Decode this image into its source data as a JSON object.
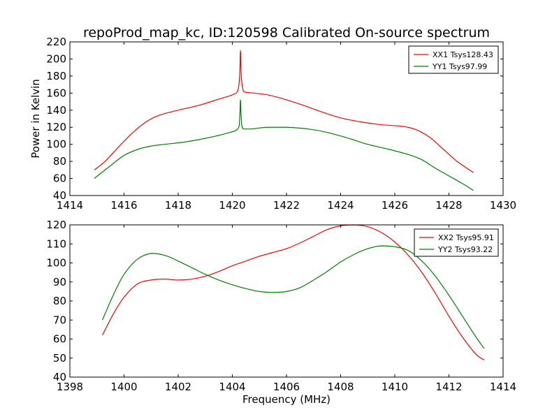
{
  "title": "repoProd_map_kc, ID:120598 Calibrated On-source spectrum",
  "colors": {
    "red": "#ff0000",
    "green": "#008000"
  },
  "chart_data": [
    {
      "type": "line",
      "title": "repoProd_map_kc, ID:120598 Calibrated On-source spectrum",
      "xlabel": "",
      "ylabel": "Power in Kelvin",
      "xlim": [
        1414,
        1430
      ],
      "ylim": [
        40,
        220
      ],
      "xticks": [
        "1414",
        "1416",
        "1418",
        "1420",
        "1422",
        "1424",
        "1426",
        "1428",
        "1430"
      ],
      "yticks": [
        "40",
        "60",
        "80",
        "100",
        "120",
        "140",
        "160",
        "180",
        "200",
        "220"
      ],
      "legend": "top-right",
      "grid": false,
      "series": [
        {
          "name": "XX1 Tsys128.43",
          "color": "#ff0000",
          "x": [
            1414.9,
            1415.3,
            1415.8,
            1416.3,
            1416.8,
            1417.3,
            1418.0,
            1418.8,
            1419.5,
            1420.0,
            1420.2,
            1420.27,
            1420.3,
            1420.33,
            1420.4,
            1420.5,
            1420.8,
            1421.3,
            1421.8,
            1422.5,
            1423.3,
            1424.0,
            1424.8,
            1425.5,
            1426.3,
            1426.8,
            1427.3,
            1427.8,
            1428.3,
            1428.9
          ],
          "y": [
            70,
            80,
            97,
            113,
            126,
            134,
            140,
            146,
            153,
            158,
            163,
            180,
            210,
            180,
            163,
            161,
            160,
            158,
            154,
            147,
            138,
            131,
            126,
            123,
            121,
            117,
            108,
            94,
            80,
            67
          ]
        },
        {
          "name": "YY1 Tsys97.99",
          "color": "#008000",
          "x": [
            1414.9,
            1415.5,
            1416.0,
            1416.5,
            1417.0,
            1417.5,
            1418.3,
            1419.0,
            1419.8,
            1420.2,
            1420.27,
            1420.3,
            1420.33,
            1420.4,
            1420.7,
            1421.3,
            1422.0,
            1422.8,
            1423.5,
            1424.3,
            1425.0,
            1425.8,
            1426.5,
            1427.0,
            1427.5,
            1428.0,
            1428.5,
            1428.9
          ],
          "y": [
            60,
            75,
            87,
            94,
            98,
            100,
            103,
            107,
            113,
            118,
            130,
            152,
            130,
            118,
            118,
            120,
            120,
            118,
            114,
            107,
            100,
            94,
            88,
            82,
            72,
            63,
            54,
            46
          ]
        }
      ]
    },
    {
      "type": "line",
      "title": "",
      "xlabel": "Frequency (MHz)",
      "ylabel": "",
      "xlim": [
        1398,
        1414
      ],
      "ylim": [
        40,
        120
      ],
      "xticks": [
        "1398",
        "1400",
        "1402",
        "1404",
        "1406",
        "1408",
        "1410",
        "1412",
        "1414"
      ],
      "yticks": [
        "40",
        "50",
        "60",
        "70",
        "80",
        "90",
        "100",
        "110",
        "120"
      ],
      "legend": "top-right",
      "grid": false,
      "series": [
        {
          "name": "XX2 Tsys95.91",
          "color": "#ff0000",
          "x": [
            1399.2,
            1399.6,
            1400.0,
            1400.5,
            1401.0,
            1401.5,
            1402.0,
            1402.5,
            1403.0,
            1403.5,
            1404.0,
            1404.5,
            1405.0,
            1405.5,
            1406.0,
            1406.5,
            1407.0,
            1407.5,
            1408.0,
            1408.5,
            1409.0,
            1409.5,
            1410.0,
            1410.5,
            1411.0,
            1411.5,
            1412.0,
            1412.5,
            1413.0,
            1413.3
          ],
          "y": [
            62,
            73,
            82,
            89,
            91,
            91.5,
            91,
            91.5,
            93,
            95.5,
            98.5,
            101,
            103.5,
            105.5,
            107.5,
            110.5,
            114,
            117.5,
            119.5,
            120,
            119,
            116,
            111,
            104,
            95,
            84,
            72,
            61,
            52,
            49
          ]
        },
        {
          "name": "YY2 Tsys93.22",
          "color": "#008000",
          "x": [
            1399.2,
            1399.6,
            1400.0,
            1400.5,
            1401.0,
            1401.5,
            1402.0,
            1402.5,
            1403.0,
            1403.5,
            1404.0,
            1404.5,
            1405.0,
            1405.5,
            1406.0,
            1406.5,
            1407.0,
            1407.5,
            1408.0,
            1408.5,
            1409.0,
            1409.5,
            1410.0,
            1410.5,
            1411.0,
            1411.5,
            1412.0,
            1412.5,
            1413.0,
            1413.3
          ],
          "y": [
            70,
            83,
            94,
            102,
            105,
            104,
            101,
            97.5,
            94,
            91,
            88.5,
            86.5,
            85,
            84.5,
            85,
            87,
            91,
            95.5,
            100.5,
            104.5,
            107.5,
            109,
            108.5,
            106.5,
            101,
            93,
            83,
            72,
            61,
            55
          ]
        }
      ]
    }
  ]
}
